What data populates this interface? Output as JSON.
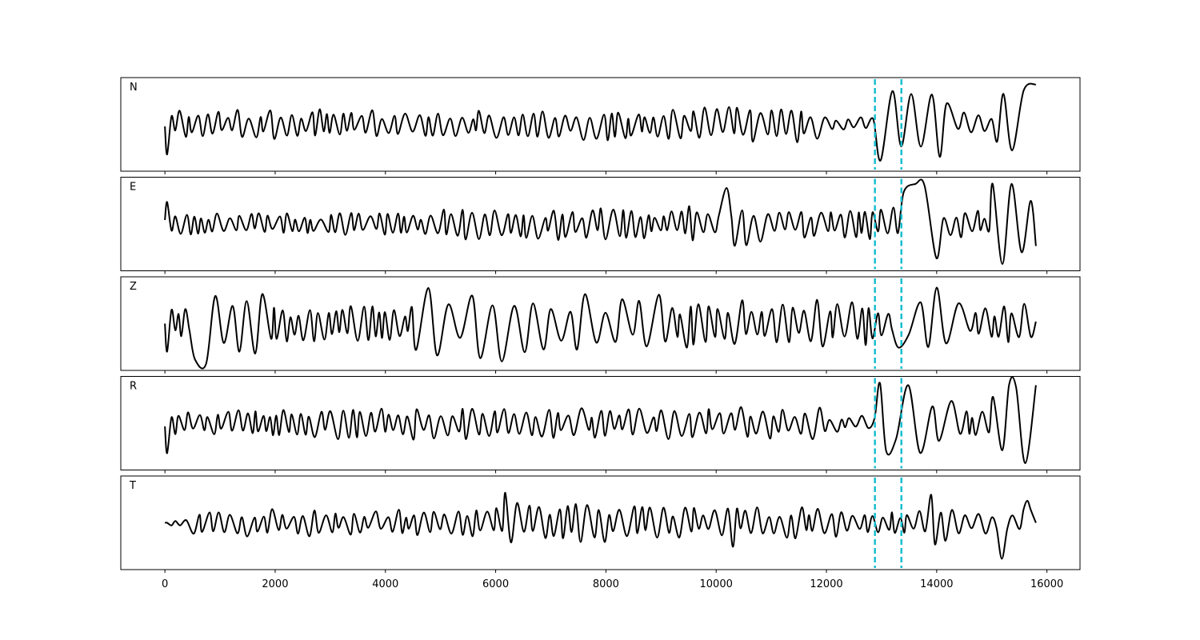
{
  "chart_data": {
    "type": "line",
    "title": "",
    "xlabel": "",
    "ylabel": "",
    "xlim": [
      -800,
      16600
    ],
    "x_ticks": [
      0,
      2000,
      4000,
      6000,
      8000,
      10000,
      12000,
      14000,
      16000
    ],
    "x_tick_labels": [
      "0",
      "2000",
      "4000",
      "6000",
      "8000",
      "10000",
      "12000",
      "14000",
      "16000"
    ],
    "x_range_of_traces": [
      0,
      15800
    ],
    "grid": false,
    "legend": "none",
    "y_ticks_shown": false,
    "trace_color": "#000000",
    "marker_color": "#17becf",
    "markers_x": [
      12880,
      13360
    ],
    "panels": [
      {
        "label": "N",
        "seed": 11,
        "start_offset": -0.05,
        "start_dip": -0.75,
        "end_value": 1.0,
        "segments": [
          [
            0,
            3000,
            0.38
          ],
          [
            3000,
            6000,
            0.36
          ],
          [
            6000,
            9000,
            0.4
          ],
          [
            9000,
            12000,
            0.45
          ],
          [
            12000,
            12880,
            0.18
          ],
          [
            12880,
            13400,
            0.95
          ],
          [
            13400,
            14300,
            0.85
          ],
          [
            14300,
            15000,
            0.3
          ],
          [
            15000,
            15800,
            1.0
          ]
        ],
        "spikes": [
          [
            12970,
            1.0
          ],
          [
            13060,
            -0.9
          ],
          [
            13380,
            -0.55
          ],
          [
            15630,
            1.0
          ],
          [
            15730,
            -1.0
          ],
          [
            15480,
            0.85
          ],
          [
            15360,
            -0.65
          ]
        ]
      },
      {
        "label": "E",
        "seed": 23,
        "start_offset": 0.1,
        "start_dip": 0.55,
        "end_value": -0.55,
        "segments": [
          [
            0,
            5000,
            0.28
          ],
          [
            5000,
            9500,
            0.4
          ],
          [
            9500,
            11000,
            0.55
          ],
          [
            11000,
            12880,
            0.38
          ],
          [
            12880,
            13300,
            0.45
          ],
          [
            13300,
            14000,
            1.0
          ],
          [
            14000,
            15000,
            0.35
          ],
          [
            15000,
            15800,
            0.85
          ]
        ],
        "spikes": [
          [
            10200,
            0.9
          ],
          [
            13380,
            -1.0
          ],
          [
            13450,
            0.8
          ],
          [
            13600,
            1.0
          ],
          [
            15080,
            1.0
          ],
          [
            15160,
            -1.0
          ],
          [
            15290,
            1.0
          ]
        ]
      },
      {
        "label": "Z",
        "seed": 37,
        "start_offset": 0.0,
        "start_dip": -0.7,
        "end_value": 0.05,
        "segments": [
          [
            0,
            500,
            0.45
          ],
          [
            500,
            900,
            1.0
          ],
          [
            900,
            1900,
            0.75
          ],
          [
            1900,
            4500,
            0.45
          ],
          [
            4500,
            6200,
            0.95
          ],
          [
            6200,
            9000,
            0.75
          ],
          [
            9000,
            12880,
            0.6
          ],
          [
            12880,
            13300,
            0.35
          ],
          [
            13300,
            14500,
            0.7
          ],
          [
            14500,
            15800,
            0.5
          ]
        ],
        "spikes": [
          [
            600,
            1.0
          ],
          [
            660,
            -1.0
          ],
          [
            560,
            -0.9
          ],
          [
            13340,
            -0.6
          ],
          [
            14050,
            0.9
          ]
        ]
      },
      {
        "label": "R",
        "seed": 53,
        "start_offset": -0.08,
        "start_dip": -0.75,
        "end_value": 0.95,
        "segments": [
          [
            0,
            3000,
            0.36
          ],
          [
            3000,
            6000,
            0.42
          ],
          [
            6000,
            9000,
            0.38
          ],
          [
            9000,
            12000,
            0.42
          ],
          [
            12000,
            12880,
            0.22
          ],
          [
            12880,
            13500,
            0.95
          ],
          [
            13500,
            14300,
            0.8
          ],
          [
            14300,
            15000,
            0.35
          ],
          [
            15000,
            15800,
            1.0
          ]
        ],
        "spikes": [
          [
            12980,
            1.0
          ],
          [
            13060,
            -0.7
          ],
          [
            13400,
            -0.8
          ],
          [
            13560,
            0.95
          ],
          [
            15720,
            -1.0
          ],
          [
            15500,
            0.9
          ]
        ]
      },
      {
        "label": "T",
        "seed": 71,
        "start_offset": 0.0,
        "start_dip": 0.0,
        "end_value": 0.0,
        "segments": [
          [
            0,
            500,
            0.08
          ],
          [
            500,
            6000,
            0.35
          ],
          [
            6000,
            9000,
            0.5
          ],
          [
            9000,
            12880,
            0.4
          ],
          [
            12880,
            13600,
            0.3
          ],
          [
            13600,
            14200,
            0.55
          ],
          [
            14200,
            15000,
            0.35
          ],
          [
            15000,
            15400,
            0.3
          ],
          [
            15400,
            15800,
            0.4
          ]
        ],
        "spikes": [
          [
            6150,
            0.75
          ],
          [
            10300,
            -0.6
          ],
          [
            13850,
            0.7
          ],
          [
            15150,
            1.0
          ],
          [
            15230,
            -0.9
          ],
          [
            15620,
            0.55
          ]
        ]
      }
    ]
  }
}
